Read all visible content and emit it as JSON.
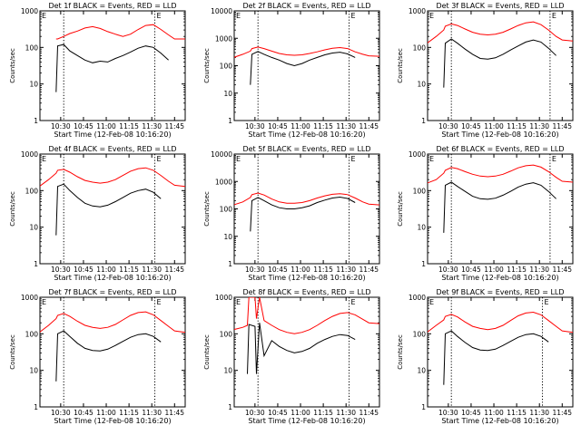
{
  "colors": {
    "events": "#000000",
    "lld": "#ff0000",
    "axes": "#000000",
    "background": "#ffffff"
  },
  "shared": {
    "xlabel": "Start Time (12-Feb-08 10:16:20)",
    "ylabel": "Counts/sec",
    "x_tick_labels": [
      "10:30",
      "10:45",
      "11:00",
      "11:15",
      "11:30",
      "11:45"
    ],
    "y_tick_labels": [
      "1",
      "10",
      "100",
      "1000"
    ],
    "corner_mark_left": "E",
    "corner_mark_right": "E"
  },
  "chart_data": [
    {
      "type": "line",
      "title": "Det 1f BLACK = Events, RED = LLD",
      "yscale": "log",
      "ylim": [
        1,
        1000
      ],
      "xlim": [
        "10:16:20",
        "11:52"
      ],
      "x": [
        "10:27",
        "10:28",
        "10:32",
        "10:36",
        "10:41",
        "10:46",
        "10:51",
        "10:56",
        "11:01",
        "11:06",
        "11:11",
        "11:16",
        "11:21",
        "11:26",
        "11:31",
        "11:36",
        "11:41",
        "11:45",
        "11:52"
      ],
      "vlines": [
        "10:32",
        "11:32"
      ],
      "series": [
        {
          "name": "LLD",
          "values": [
            170,
            170,
            200,
            240,
            280,
            340,
            370,
            330,
            270,
            230,
            200,
            230,
            310,
            400,
            420,
            310,
            220,
            170,
            170
          ]
        },
        {
          "name": "Events",
          "values": [
            6,
            110,
            120,
            80,
            60,
            45,
            38,
            42,
            40,
            50,
            60,
            75,
            95,
            110,
            100,
            70,
            45,
            null,
            null
          ]
        }
      ]
    },
    {
      "type": "line",
      "title": "Det 2f BLACK = Events, RED = LLD",
      "yscale": "log",
      "ylim": [
        1,
        10000
      ],
      "xlim": [
        "10:16:20",
        "11:52"
      ],
      "x": [
        "10:16",
        "10:22",
        "10:27",
        "10:28",
        "10:32",
        "10:36",
        "10:41",
        "10:46",
        "10:51",
        "10:56",
        "11:01",
        "11:06",
        "11:11",
        "11:16",
        "11:21",
        "11:26",
        "11:31",
        "11:36",
        "11:41",
        "11:45",
        "11:52"
      ],
      "vlines": [
        "10:32",
        "11:32"
      ],
      "series": [
        {
          "name": "LLD",
          "values": [
            200,
            260,
            340,
            420,
            480,
            420,
            340,
            280,
            250,
            240,
            250,
            280,
            320,
            380,
            430,
            460,
            420,
            320,
            260,
            230,
            220
          ]
        },
        {
          "name": "Events",
          "values": [
            null,
            null,
            20,
            260,
            330,
            260,
            200,
            160,
            120,
            100,
            120,
            160,
            200,
            250,
            290,
            310,
            270,
            200,
            null,
            null,
            null
          ]
        }
      ]
    },
    {
      "type": "line",
      "title": "Det 3f BLACK = Events, RED = LLD",
      "yscale": "log",
      "ylim": [
        1,
        1000
      ],
      "xlim": [
        "10:16:20",
        "11:52"
      ],
      "x": [
        "10:16",
        "10:22",
        "10:27",
        "10:28",
        "10:32",
        "10:36",
        "10:41",
        "10:46",
        "10:51",
        "10:56",
        "11:01",
        "11:06",
        "11:11",
        "11:16",
        "11:21",
        "11:26",
        "11:31",
        "11:36",
        "11:41",
        "11:45",
        "11:52"
      ],
      "vlines": [
        "10:32",
        "11:37"
      ],
      "series": [
        {
          "name": "LLD",
          "values": [
            130,
            200,
            300,
            380,
            440,
            400,
            320,
            260,
            230,
            220,
            230,
            260,
            320,
            400,
            470,
            500,
            420,
            300,
            200,
            160,
            150
          ]
        },
        {
          "name": "Events",
          "values": [
            null,
            null,
            8,
            130,
            170,
            130,
            90,
            65,
            50,
            48,
            52,
            65,
            85,
            110,
            140,
            160,
            140,
            95,
            60,
            null,
            null
          ]
        }
      ]
    },
    {
      "type": "line",
      "title": "Det 4f BLACK = Events, RED = LLD",
      "yscale": "log",
      "ylim": [
        1,
        1000
      ],
      "xlim": [
        "10:16:20",
        "11:52"
      ],
      "x": [
        "10:16",
        "10:22",
        "10:27",
        "10:28",
        "10:32",
        "10:36",
        "10:41",
        "10:46",
        "10:51",
        "10:56",
        "11:01",
        "11:06",
        "11:11",
        "11:16",
        "11:21",
        "11:26",
        "11:31",
        "11:36",
        "11:41",
        "11:45",
        "11:52"
      ],
      "vlines": [
        "10:32",
        "11:32"
      ],
      "series": [
        {
          "name": "LLD",
          "values": [
            130,
            200,
            300,
            360,
            380,
            320,
            240,
            190,
            170,
            160,
            170,
            200,
            260,
            340,
            400,
            420,
            360,
            260,
            180,
            140,
            130
          ]
        },
        {
          "name": "Events",
          "values": [
            null,
            null,
            6,
            130,
            150,
            100,
            65,
            45,
            38,
            36,
            40,
            50,
            65,
            85,
            100,
            110,
            90,
            60,
            null,
            null,
            null
          ]
        }
      ]
    },
    {
      "type": "line",
      "title": "Det 5f BLACK = Events, RED = LLD",
      "yscale": "log",
      "ylim": [
        1,
        10000
      ],
      "xlim": [
        "10:16:20",
        "11:52"
      ],
      "x": [
        "10:16",
        "10:22",
        "10:27",
        "10:28",
        "10:32",
        "10:36",
        "10:41",
        "10:46",
        "10:51",
        "10:56",
        "11:01",
        "11:06",
        "11:11",
        "11:16",
        "11:21",
        "11:26",
        "11:31",
        "11:36",
        "11:41",
        "11:45",
        "11:52"
      ],
      "vlines": [
        "10:32",
        "11:32"
      ],
      "series": [
        {
          "name": "LLD",
          "values": [
            140,
            180,
            260,
            330,
            380,
            320,
            230,
            180,
            160,
            160,
            170,
            200,
            250,
            300,
            340,
            360,
            330,
            250,
            180,
            150,
            140
          ]
        },
        {
          "name": "Events",
          "values": [
            null,
            null,
            15,
            200,
            260,
            200,
            140,
            110,
            100,
            100,
            110,
            130,
            170,
            210,
            250,
            270,
            240,
            170,
            null,
            null,
            null
          ]
        }
      ]
    },
    {
      "type": "line",
      "title": "Det 6f BLACK = Events, RED = LLD",
      "yscale": "log",
      "ylim": [
        1,
        1000
      ],
      "xlim": [
        "10:16:20",
        "11:52"
      ],
      "x": [
        "10:16",
        "10:22",
        "10:27",
        "10:28",
        "10:32",
        "10:36",
        "10:41",
        "10:46",
        "10:51",
        "10:56",
        "11:01",
        "11:06",
        "11:11",
        "11:16",
        "11:21",
        "11:26",
        "11:31",
        "11:36",
        "11:41",
        "11:45",
        "11:52"
      ],
      "vlines": [
        "10:32",
        "11:37"
      ],
      "series": [
        {
          "name": "LLD",
          "values": [
            160,
            200,
            300,
            360,
            430,
            400,
            330,
            280,
            250,
            240,
            250,
            280,
            340,
            420,
            480,
            500,
            440,
            330,
            230,
            180,
            170
          ]
        },
        {
          "name": "Events",
          "values": [
            null,
            null,
            7,
            140,
            170,
            130,
            95,
            70,
            60,
            58,
            62,
            75,
            95,
            125,
            150,
            165,
            140,
            95,
            60,
            null,
            null
          ]
        }
      ]
    },
    {
      "type": "line",
      "title": "Det 7f BLACK = Events, RED = LLD",
      "yscale": "log",
      "ylim": [
        1,
        1000
      ],
      "xlim": [
        "10:16:20",
        "11:52"
      ],
      "x": [
        "10:16",
        "10:22",
        "10:27",
        "10:28",
        "10:32",
        "10:36",
        "10:41",
        "10:46",
        "10:51",
        "10:56",
        "11:01",
        "11:06",
        "11:11",
        "11:16",
        "11:21",
        "11:26",
        "11:31",
        "11:36",
        "11:41",
        "11:45",
        "11:52"
      ],
      "vlines": [
        "10:32",
        "11:32"
      ],
      "series": [
        {
          "name": "LLD",
          "values": [
            110,
            170,
            260,
            320,
            360,
            300,
            220,
            170,
            150,
            140,
            150,
            180,
            240,
            320,
            380,
            400,
            330,
            230,
            160,
            120,
            110
          ]
        },
        {
          "name": "Events",
          "values": [
            null,
            null,
            5,
            100,
            120,
            85,
            55,
            40,
            35,
            34,
            38,
            48,
            62,
            80,
            95,
            100,
            85,
            60,
            null,
            null,
            null
          ]
        }
      ]
    },
    {
      "type": "line",
      "title": "Det 8f BLACK = Events, RED = LLD",
      "yscale": "log",
      "ylim": [
        1,
        1000
      ],
      "xlim": [
        "10:16:20",
        "11:52"
      ],
      "x": [
        "10:16",
        "10:22",
        "10:25",
        "10:26",
        "10:30",
        "10:31",
        "10:33",
        "10:36",
        "10:41",
        "10:46",
        "10:51",
        "10:56",
        "11:01",
        "11:06",
        "11:11",
        "11:16",
        "11:21",
        "11:26",
        "11:31",
        "11:36",
        "11:41",
        "11:45",
        "11:52"
      ],
      "vlines": [
        "10:32",
        "11:32"
      ],
      "series": [
        {
          "name": "LLD",
          "values": [
            130,
            150,
            170,
            1000,
            1000,
            260,
            1000,
            230,
            170,
            130,
            110,
            100,
            110,
            130,
            170,
            230,
            300,
            360,
            380,
            330,
            250,
            200,
            190
          ]
        },
        {
          "name": "Events",
          "values": [
            null,
            null,
            8,
            180,
            160,
            8,
            200,
            25,
            65,
            45,
            35,
            30,
            33,
            40,
            55,
            70,
            85,
            95,
            90,
            70,
            null,
            null,
            null
          ]
        }
      ]
    },
    {
      "type": "line",
      "title": "Det 9f BLACK = Events, RED = LLD",
      "yscale": "log",
      "ylim": [
        1,
        1000
      ],
      "xlim": [
        "10:16:20",
        "11:52"
      ],
      "x": [
        "10:16",
        "10:22",
        "10:27",
        "10:28",
        "10:32",
        "10:36",
        "10:41",
        "10:46",
        "10:51",
        "10:56",
        "11:01",
        "11:06",
        "11:11",
        "11:16",
        "11:21",
        "11:26",
        "11:31",
        "11:36",
        "11:41",
        "11:45",
        "11:52"
      ],
      "vlines": [
        "10:32",
        "11:32"
      ],
      "series": [
        {
          "name": "LLD",
          "values": [
            110,
            170,
            240,
            300,
            340,
            290,
            210,
            160,
            140,
            130,
            140,
            170,
            230,
            310,
            370,
            390,
            330,
            230,
            160,
            120,
            110
          ]
        },
        {
          "name": "Events",
          "values": [
            null,
            null,
            4,
            100,
            120,
            85,
            58,
            42,
            36,
            35,
            38,
            48,
            62,
            80,
            95,
            100,
            85,
            60,
            null,
            null,
            null
          ]
        }
      ]
    }
  ]
}
